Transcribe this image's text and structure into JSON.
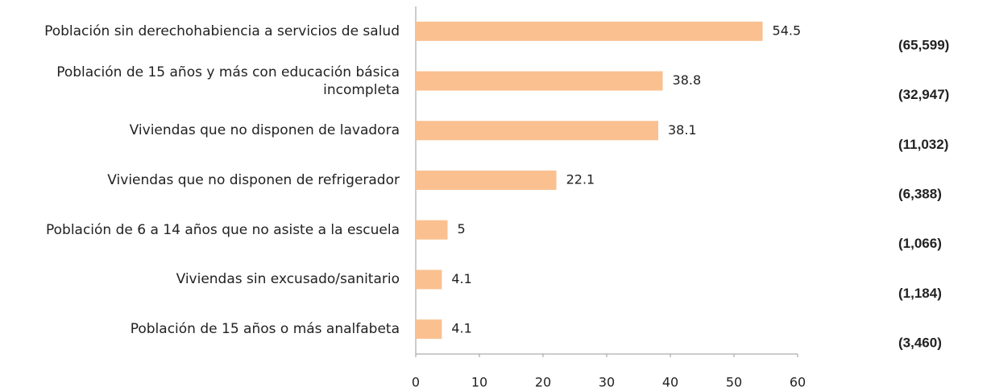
{
  "chart_data": {
    "type": "bar",
    "orientation": "horizontal",
    "categories": [
      "Población sin derechohabiencia a servicios de salud",
      "Población de 15 años y más con educación básica incompleta",
      "Viviendas que no disponen de lavadora",
      "Viviendas que no disponen de refrigerador",
      "Población de 6 a 14 años que no asiste a la escuela",
      "Viviendas sin excusado/sanitario",
      "Población de 15 años o más analfabeta"
    ],
    "values": [
      54.5,
      38.8,
      38.1,
      22.1,
      5,
      4.1,
      4.1
    ],
    "annotations": [
      "(65,599)",
      "(32,947)",
      "(11,032)",
      "(6,388)",
      "(1,066)",
      "(1,184)",
      "(3,460)"
    ],
    "color": "#fac090",
    "xlim": [
      0,
      60
    ],
    "xticks": [
      0,
      10,
      20,
      30,
      40,
      50,
      60
    ],
    "grid": false
  }
}
